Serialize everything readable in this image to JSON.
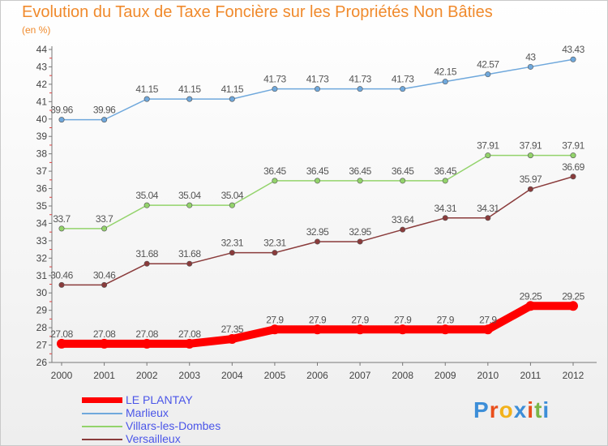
{
  "chart_data": {
    "type": "line",
    "title": "Evolution du Taux de Taxe Foncière sur les Propriétés Non Bâties",
    "subtitle": "(en %)",
    "x": [
      "2000",
      "2001",
      "2002",
      "2003",
      "2004",
      "2005",
      "2006",
      "2007",
      "2008",
      "2009",
      "2010",
      "2011",
      "2012"
    ],
    "ylim": [
      26,
      44
    ],
    "yticks": [
      26,
      27,
      28,
      29,
      30,
      31,
      32,
      33,
      34,
      35,
      36,
      37,
      38,
      39,
      40,
      41,
      42,
      43,
      44
    ],
    "grid": false,
    "legend_position": "bottom-left",
    "series": [
      {
        "name": "LE PLANTAY",
        "color": "#ff0000",
        "values": [
          27.08,
          27.08,
          27.08,
          27.08,
          27.35,
          27.9,
          27.9,
          27.9,
          27.9,
          27.9,
          27.9,
          29.25,
          29.25
        ],
        "labels": [
          "27.08",
          "27.08",
          "27.08",
          "27.08",
          "27.35",
          "27.9",
          "27.9",
          "27.9",
          "27.9",
          "27.9",
          "27.9",
          "29.25",
          "29.25"
        ]
      },
      {
        "name": "Marlieux",
        "color": "#6fa8dc",
        "values": [
          39.96,
          39.96,
          41.15,
          41.15,
          41.15,
          41.73,
          41.73,
          41.73,
          41.73,
          42.15,
          42.57,
          43,
          43.43
        ],
        "labels": [
          "39.96",
          "39.96",
          "41.15",
          "41.15",
          "41.15",
          "41.73",
          "41.73",
          "41.73",
          "41.73",
          "42.15",
          "42.57",
          "43",
          "43.43"
        ]
      },
      {
        "name": "Villars-les-Dombes",
        "color": "#93d36b",
        "values": [
          33.7,
          33.7,
          35.04,
          35.04,
          35.04,
          36.45,
          36.45,
          36.45,
          36.45,
          36.45,
          37.91,
          37.91,
          37.91
        ],
        "labels": [
          "33.7",
          "33.7",
          "35.04",
          "35.04",
          "35.04",
          "36.45",
          "36.45",
          "36.45",
          "36.45",
          "36.45",
          "37.91",
          "37.91",
          "37.91"
        ]
      },
      {
        "name": "Versailleux",
        "color": "#8a3b3b",
        "values": [
          30.46,
          30.46,
          31.68,
          31.68,
          32.31,
          32.31,
          32.95,
          32.95,
          33.64,
          34.31,
          34.31,
          35.97,
          36.69
        ],
        "labels": [
          "30.46",
          "30.46",
          "31.68",
          "31.68",
          "32.31",
          "32.31",
          "32.95",
          "32.95",
          "33.64",
          "34.31",
          "34.31",
          "35.97",
          "36.69"
        ]
      }
    ]
  },
  "brand": {
    "letters": [
      "P",
      "r",
      "o",
      "x",
      "i",
      "t",
      "i"
    ],
    "colors": [
      "#3d8ed8",
      "#e94e1b",
      "#f2b21b",
      "#3d8ed8",
      "#e94e1b",
      "#7ab648",
      "#3d8ed8"
    ]
  }
}
